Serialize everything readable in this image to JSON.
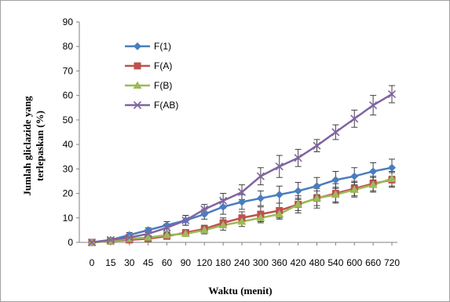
{
  "chart_data": {
    "type": "line",
    "title": "",
    "xlabel": "Waktu (menit)",
    "ylabel_lines": [
      "Jumlah gliclazide yang",
      "terlepaskan (%)"
    ],
    "ylim": [
      0,
      90
    ],
    "yticks": [
      0,
      10,
      20,
      30,
      40,
      50,
      60,
      70,
      80,
      90
    ],
    "categories": [
      "0",
      "15",
      "30",
      "45",
      "60",
      "90",
      "120",
      "180",
      "240",
      "300",
      "360",
      "420",
      "480",
      "540",
      "600",
      "660",
      "720"
    ],
    "grid": false,
    "legend_position": "top-left",
    "series": [
      {
        "name": "F(1)",
        "color": "#4a7dbf",
        "marker": "diamond",
        "values": [
          0,
          1,
          3,
          5,
          7,
          9,
          11.5,
          14.5,
          16.5,
          18,
          19.5,
          21,
          23,
          25.5,
          27,
          29,
          30.5
        ],
        "errors": [
          0.5,
          0.8,
          1,
          1,
          1.5,
          2,
          2,
          3,
          3,
          3,
          3.5,
          3.5,
          3.5,
          3.5,
          3.5,
          3.5,
          3.5
        ]
      },
      {
        "name": "F(A)",
        "color": "#c0504d",
        "marker": "square",
        "values": [
          0,
          0.5,
          1,
          1.5,
          2.5,
          4,
          5.5,
          8,
          10,
          11.5,
          13,
          15.5,
          18,
          20,
          22,
          24,
          25.5
        ],
        "errors": [
          0.3,
          0.5,
          0.5,
          0.5,
          1,
          1,
          1.5,
          2,
          2.5,
          3,
          3,
          3.5,
          4,
          4,
          3,
          3,
          3
        ]
      },
      {
        "name": "F(B)",
        "color": "#9bbb59",
        "marker": "triangle",
        "values": [
          0,
          0.5,
          1.5,
          2,
          3,
          3.5,
          5,
          7,
          8.5,
          10,
          11.5,
          15.5,
          18,
          19.5,
          21.5,
          23.5,
          26
        ],
        "errors": [
          0.3,
          0.5,
          0.5,
          0.5,
          1,
          1,
          1.5,
          2,
          2,
          2,
          2,
          2.5,
          3,
          3,
          3,
          3,
          3
        ]
      },
      {
        "name": "F(AB)",
        "color": "#8064a2",
        "marker": "x",
        "values": [
          0,
          1,
          2,
          3.5,
          6,
          9,
          13.5,
          17,
          20.5,
          27,
          31,
          34.5,
          39.5,
          45,
          50.5,
          56,
          60.5
        ],
        "errors": [
          0.5,
          0.8,
          1,
          1,
          1.5,
          2,
          2,
          3,
          3,
          3.5,
          4.5,
          3.5,
          2.5,
          3,
          3.5,
          4,
          3.5
        ]
      }
    ]
  }
}
